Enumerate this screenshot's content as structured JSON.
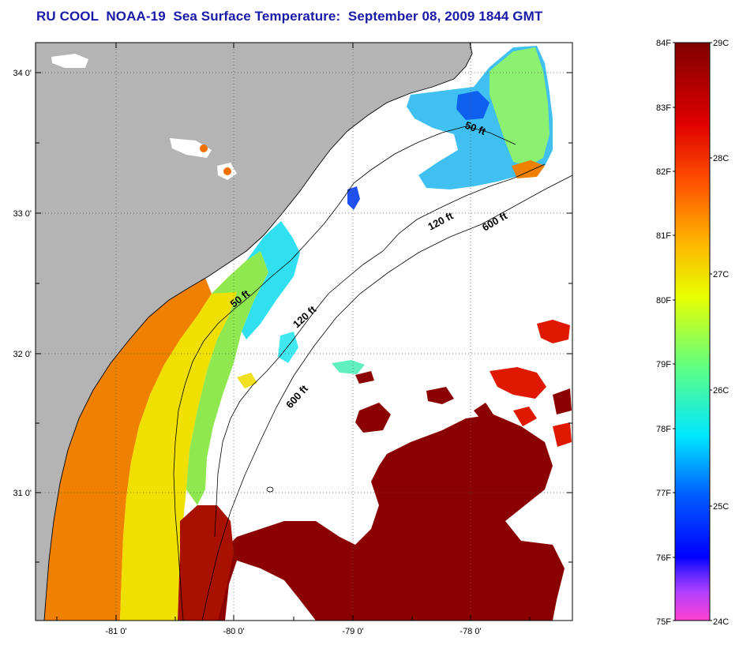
{
  "title": "RU COOL  NOAA-19  Sea Surface Temperature:  September 08, 2009 1844 GMT",
  "axes": {
    "lat_ticks": [
      {
        "value": 34,
        "label": "34 0'"
      },
      {
        "value": 33,
        "label": "33 0'"
      },
      {
        "value": 32,
        "label": "32 0'"
      },
      {
        "value": 31,
        "label": "31 0'"
      }
    ],
    "lon_ticks": [
      {
        "value": -81,
        "label": "-81 0'"
      },
      {
        "value": -80,
        "label": "-80 0'"
      },
      {
        "value": -79,
        "label": "-79 0'"
      },
      {
        "value": -78,
        "label": "-78 0'"
      }
    ]
  },
  "contours": [
    {
      "label": "50 ft"
    },
    {
      "label": "120 ft"
    },
    {
      "label": "600 ft"
    },
    {
      "label": "50 ft"
    },
    {
      "label": "120 ft"
    },
    {
      "label": "600 ft"
    }
  ],
  "colorbar": {
    "fahrenheit": [
      "84F",
      "83F",
      "82F",
      "81F",
      "80F",
      "79F",
      "78F",
      "77F",
      "76F",
      "75F"
    ],
    "celsius": [
      "29C",
      "28C",
      "27C",
      "26C",
      "25C",
      "24C"
    ],
    "range_f": [
      75,
      84
    ]
  },
  "colors": {
    "land": "#b4b4b4",
    "title": "#1a1aa8",
    "warm": "#8b0000",
    "scale": [
      "#ff40c0",
      "#b040ff",
      "#3030ff",
      "#0080ff",
      "#00e5ff",
      "#80ff40",
      "#ffff00",
      "#ff9000",
      "#ff2000",
      "#8b0000"
    ]
  }
}
